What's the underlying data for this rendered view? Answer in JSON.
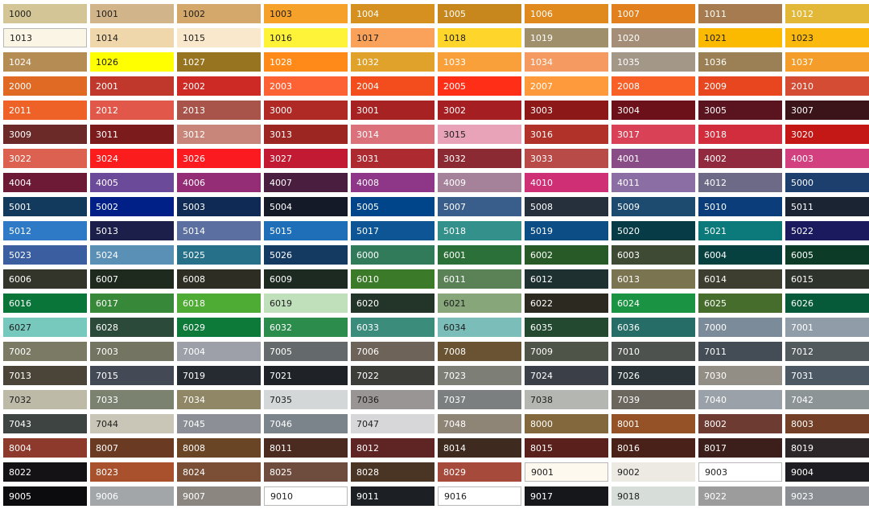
{
  "swatches": [
    [
      "1000",
      "#d3c596",
      "d"
    ],
    [
      "1001",
      "#d2b48a",
      "d"
    ],
    [
      "1002",
      "#d4a86a",
      "d"
    ],
    [
      "1003",
      "#f5a12a",
      "d"
    ],
    [
      "1004",
      "#d6901f",
      "l"
    ],
    [
      "1005",
      "#c8871c",
      "l"
    ],
    [
      "1006",
      "#e0891d",
      "l"
    ],
    [
      "1007",
      "#e1801d",
      "l"
    ],
    [
      "1011",
      "#a67b4f",
      "l"
    ],
    [
      "1012",
      "#e3b838",
      "l"
    ],
    [
      "1013",
      "#fbf5e6",
      "d",
      "b"
    ],
    [
      "1014",
      "#efd6ab",
      "d"
    ],
    [
      "1015",
      "#f9e8cc",
      "d"
    ],
    [
      "1016",
      "#fff33a",
      "d"
    ],
    [
      "1017",
      "#fba25a",
      "d"
    ],
    [
      "1018",
      "#fed52a",
      "d"
    ],
    [
      "1019",
      "#9f8f6a",
      "l"
    ],
    [
      "1020",
      "#a48e77",
      "l"
    ],
    [
      "1021",
      "#fbb900",
      "d"
    ],
    [
      "1023",
      "#fbb90f",
      "d"
    ],
    [
      "1024",
      "#b48c54",
      "l"
    ],
    [
      "1026",
      "#ffff00",
      "d"
    ],
    [
      "1027",
      "#977420",
      "l"
    ],
    [
      "1028",
      "#ff8a1a",
      "l"
    ],
    [
      "1032",
      "#e0a22a",
      "l"
    ],
    [
      "1033",
      "#f9a03a",
      "l"
    ],
    [
      "1034",
      "#f59a60",
      "l"
    ],
    [
      "1035",
      "#a39788",
      "l"
    ],
    [
      "1036",
      "#9b7f55",
      "l"
    ],
    [
      "1037",
      "#f59d2a",
      "l"
    ],
    [
      "2000",
      "#e06a24",
      "l"
    ],
    [
      "2001",
      "#c0382b",
      "l"
    ],
    [
      "2002",
      "#cd2a25",
      "l"
    ],
    [
      "2003",
      "#fd6235",
      "l"
    ],
    [
      "2004",
      "#f34d1e",
      "l"
    ],
    [
      "2005",
      "#ff2f17",
      "l"
    ],
    [
      "2007",
      "#fe9a3b",
      "l"
    ],
    [
      "2008",
      "#f96028",
      "l"
    ],
    [
      "2009",
      "#e7461e",
      "l"
    ],
    [
      "2010",
      "#d54c34",
      "l"
    ],
    [
      "2011",
      "#ee6228",
      "l"
    ],
    [
      "2012",
      "#e1574a",
      "l"
    ],
    [
      "2013",
      "#a8544a",
      "l"
    ],
    [
      "3000",
      "#af2a25",
      "l"
    ],
    [
      "3001",
      "#a72223",
      "l"
    ],
    [
      "3002",
      "#a41e22",
      "l"
    ],
    [
      "3003",
      "#8d1818",
      "l"
    ],
    [
      "3004",
      "#6c1119",
      "l"
    ],
    [
      "3005",
      "#5a1420",
      "l"
    ],
    [
      "3007",
      "#3a1418",
      "l"
    ],
    [
      "3009",
      "#6b2a27",
      "l"
    ],
    [
      "3011",
      "#7b1b1c",
      "l"
    ],
    [
      "3012",
      "#c8867a",
      "l"
    ],
    [
      "3013",
      "#9b2622",
      "l"
    ],
    [
      "3014",
      "#db727b",
      "l"
    ],
    [
      "3015",
      "#e9a3b8",
      "d"
    ],
    [
      "3016",
      "#b03229",
      "l"
    ],
    [
      "3017",
      "#d94256",
      "l"
    ],
    [
      "3018",
      "#d12d3d",
      "l"
    ],
    [
      "3020",
      "#c41817",
      "l"
    ],
    [
      "3022",
      "#dc6150",
      "l"
    ],
    [
      "3024",
      "#fb1d1d",
      "l"
    ],
    [
      "3026",
      "#fb1a1f",
      "l"
    ],
    [
      "3027",
      "#c11a32",
      "l"
    ],
    [
      "3031",
      "#ac2a30",
      "l"
    ],
    [
      "3032",
      "#8c2a33",
      "l"
    ],
    [
      "3033",
      "#b84a48",
      "l"
    ],
    [
      "4001",
      "#8a4c86",
      "l"
    ],
    [
      "4002",
      "#922a3f",
      "l"
    ],
    [
      "4003",
      "#d3407f",
      "l"
    ],
    [
      "4004",
      "#6c1a36",
      "l"
    ],
    [
      "4005",
      "#6b4a9a",
      "l"
    ],
    [
      "4006",
      "#952d76",
      "l"
    ],
    [
      "4007",
      "#4a1e3f",
      "l"
    ],
    [
      "4008",
      "#8e3687",
      "l"
    ],
    [
      "4009",
      "#a5829a",
      "l"
    ],
    [
      "4010",
      "#cf2f75",
      "l"
    ],
    [
      "4011",
      "#8b6fa4",
      "l"
    ],
    [
      "4012",
      "#6d6a87",
      "l"
    ],
    [
      "5000",
      "#1d3f6e",
      "l"
    ],
    [
      "5001",
      "#113a5d",
      "l"
    ],
    [
      "5002",
      "#001f87",
      "l"
    ],
    [
      "5003",
      "#0f2a55",
      "l"
    ],
    [
      "5004",
      "#141a27",
      "l"
    ],
    [
      "5005",
      "#00458a",
      "l"
    ],
    [
      "5007",
      "#3a5e8c",
      "l"
    ],
    [
      "5008",
      "#26303c",
      "l"
    ],
    [
      "5009",
      "#1d4b70",
      "l"
    ],
    [
      "5010",
      "#0a3d7a",
      "l"
    ],
    [
      "5011",
      "#1a2433",
      "l"
    ],
    [
      "5012",
      "#2e7ac6",
      "l"
    ],
    [
      "5013",
      "#1b1f4a",
      "l"
    ],
    [
      "5014",
      "#5b6fa0",
      "l"
    ],
    [
      "5015",
      "#1e6eb8",
      "l"
    ],
    [
      "5017",
      "#0e5596",
      "l"
    ],
    [
      "5018",
      "#33908a",
      "l"
    ],
    [
      "5019",
      "#0d4d85",
      "l"
    ],
    [
      "5020",
      "#073c46",
      "l"
    ],
    [
      "5021",
      "#0c7a7a",
      "l"
    ],
    [
      "5022",
      "#1b1a5e",
      "l"
    ],
    [
      "5023",
      "#3a5ea0",
      "l"
    ],
    [
      "5024",
      "#5a8fb6",
      "l"
    ],
    [
      "5025",
      "#26708a",
      "l"
    ],
    [
      "5026",
      "#153a62",
      "l"
    ],
    [
      "6000",
      "#317a5a",
      "l"
    ],
    [
      "6001",
      "#2a7038",
      "l"
    ],
    [
      "6002",
      "#275a27",
      "l"
    ],
    [
      "6003",
      "#3f4a34",
      "l"
    ],
    [
      "6004",
      "#07413f",
      "l"
    ],
    [
      "6005",
      "#0c3b27",
      "l"
    ],
    [
      "6006",
      "#33352b",
      "l"
    ],
    [
      "6007",
      "#1f2a1e",
      "l"
    ],
    [
      "6008",
      "#2d2d23",
      "l"
    ],
    [
      "6009",
      "#1c2a22",
      "l"
    ],
    [
      "6010",
      "#3a7a28",
      "l"
    ],
    [
      "6011",
      "#5b8257",
      "l"
    ],
    [
      "6012",
      "#1f3030",
      "l"
    ],
    [
      "6013",
      "#7a7550",
      "l"
    ],
    [
      "6014",
      "#3d3d30",
      "l"
    ],
    [
      "6015",
      "#2e332b",
      "l"
    ],
    [
      "6016",
      "#0a7538",
      "l"
    ],
    [
      "6017",
      "#378838",
      "l"
    ],
    [
      "6018",
      "#4eab34",
      "l"
    ],
    [
      "6019",
      "#c0e0bc",
      "d"
    ],
    [
      "6020",
      "#233529",
      "l"
    ],
    [
      "6021",
      "#87a67a",
      "d"
    ],
    [
      "6022",
      "#2c2a20",
      "l"
    ],
    [
      "6024",
      "#1a9343",
      "l"
    ],
    [
      "6025",
      "#466d2c",
      "l"
    ],
    [
      "6026",
      "#065a3a",
      "l"
    ],
    [
      "6027",
      "#77c9bd",
      "d"
    ],
    [
      "6028",
      "#2b4a3a",
      "l"
    ],
    [
      "6029",
      "#0d7a3a",
      "l"
    ],
    [
      "6032",
      "#2b8c4c",
      "l"
    ],
    [
      "6033",
      "#3c8c7c",
      "l"
    ],
    [
      "6034",
      "#7bbdb8",
      "d"
    ],
    [
      "6035",
      "#234a30",
      "l"
    ],
    [
      "6036",
      "#256d66",
      "l"
    ],
    [
      "7000",
      "#7b8b99",
      "l"
    ],
    [
      "7001",
      "#909ca8",
      "l"
    ],
    [
      "7002",
      "#7b7a64",
      "l"
    ],
    [
      "7003",
      "#737562",
      "l"
    ],
    [
      "7004",
      "#9da0a8",
      "l"
    ],
    [
      "7005",
      "#646a6b",
      "l"
    ],
    [
      "7006",
      "#6e6359",
      "l"
    ],
    [
      "7008",
      "#6a5332",
      "l"
    ],
    [
      "7009",
      "#4f5448",
      "l"
    ],
    [
      "7010",
      "#4d524e",
      "l"
    ],
    [
      "7011",
      "#444c55",
      "l"
    ],
    [
      "7012",
      "#535a5e",
      "l"
    ],
    [
      "7013",
      "#4a4538",
      "l"
    ],
    [
      "7015",
      "#444a55",
      "l"
    ],
    [
      "7019",
      "#262b32",
      "l"
    ],
    [
      "7021",
      "#1f2327",
      "l"
    ],
    [
      "7022",
      "#3c3c39",
      "l"
    ],
    [
      "7023",
      "#7d7f76",
      "l"
    ],
    [
      "7024",
      "#3a3f48",
      "l"
    ],
    [
      "7026",
      "#2b3539",
      "l"
    ],
    [
      "7030",
      "#928e85",
      "l"
    ],
    [
      "7031",
      "#4c5965",
      "l"
    ],
    [
      "7032",
      "#bdbba8",
      "d"
    ],
    [
      "7033",
      "#7b8270",
      "l"
    ],
    [
      "7034",
      "#8f8765",
      "l"
    ],
    [
      "7035",
      "#d3d7d7",
      "d"
    ],
    [
      "7036",
      "#9a9595",
      "d"
    ],
    [
      "7037",
      "#7c7f80",
      "l"
    ],
    [
      "7038",
      "#b4b7b1",
      "d"
    ],
    [
      "7039",
      "#6b665e",
      "l"
    ],
    [
      "7040",
      "#9ba1a8",
      "l"
    ],
    [
      "7042",
      "#8d9496",
      "l"
    ],
    [
      "7043",
      "#3e4442",
      "l"
    ],
    [
      "7044",
      "#c9c6b8",
      "d"
    ],
    [
      "7045",
      "#8c9096",
      "l"
    ],
    [
      "7046",
      "#7b838b",
      "l"
    ],
    [
      "7047",
      "#d7d6d8",
      "d"
    ],
    [
      "7048",
      "#8f8577",
      "l"
    ],
    [
      "8000",
      "#82683c",
      "l"
    ],
    [
      "8001",
      "#955227",
      "l"
    ],
    [
      "8002",
      "#6e3b33",
      "l"
    ],
    [
      "8003",
      "#733f26",
      "l"
    ],
    [
      "8004",
      "#8d3a2c",
      "l"
    ],
    [
      "8007",
      "#6b3a22",
      "l"
    ],
    [
      "8008",
      "#6a4525",
      "l"
    ],
    [
      "8011",
      "#4b2a1f",
      "l"
    ],
    [
      "8012",
      "#5f2424",
      "l"
    ],
    [
      "8014",
      "#3e2a1e",
      "l"
    ],
    [
      "8015",
      "#5a201c",
      "l"
    ],
    [
      "8016",
      "#4a2118",
      "l"
    ],
    [
      "8017",
      "#3c1e1a",
      "l"
    ],
    [
      "8019",
      "#2c2628",
      "l"
    ],
    [
      "8022",
      "#141214",
      "l"
    ],
    [
      "8023",
      "#a8512c",
      "l"
    ],
    [
      "8024",
      "#7a4f36",
      "l"
    ],
    [
      "8025",
      "#6f4d3e",
      "l"
    ],
    [
      "8028",
      "#4a3424",
      "l"
    ],
    [
      "8029",
      "#a64a3c",
      "l"
    ],
    [
      "9001",
      "#fdf9ef",
      "d",
      "b"
    ],
    [
      "9002",
      "#eceae3",
      "d"
    ],
    [
      "9003",
      "#ffffff",
      "d",
      "b"
    ],
    [
      "9004",
      "#1e1e22",
      "l"
    ],
    [
      "9005",
      "#0c0c0e",
      "l"
    ],
    [
      "9006",
      "#a3a6a9",
      "l"
    ],
    [
      "9007",
      "#8b8780",
      "l"
    ],
    [
      "9010",
      "#ffffff",
      "d",
      "b"
    ],
    [
      "9011",
      "#1c2024",
      "l"
    ],
    [
      "9016",
      "#ffffff",
      "d",
      "b"
    ],
    [
      "9017",
      "#16171b",
      "l"
    ],
    [
      "9018",
      "#d7ddd9",
      "d"
    ],
    [
      "9022",
      "#9c9c9c",
      "l"
    ],
    [
      "9023",
      "#8a8d91",
      "l"
    ]
  ]
}
